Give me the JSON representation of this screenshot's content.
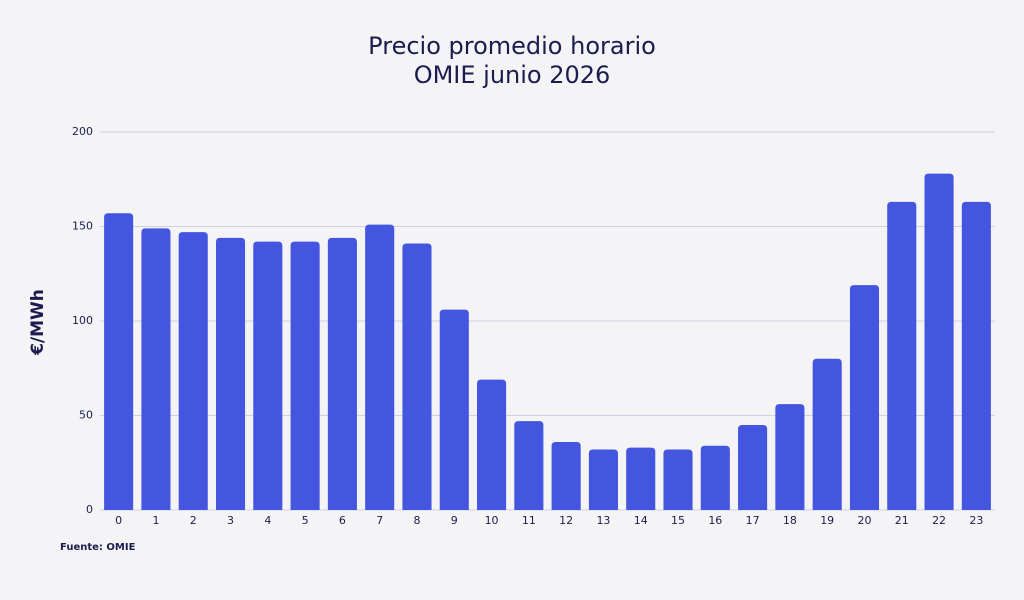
{
  "chart_data": {
    "type": "bar",
    "title": [
      "Precio promedio horario",
      "OMIE junio 2026"
    ],
    "ylabel": "€/MWh",
    "source": "Fuente: OMIE",
    "categories": [
      "0",
      "1",
      "2",
      "3",
      "4",
      "5",
      "6",
      "7",
      "8",
      "9",
      "10",
      "11",
      "12",
      "13",
      "14",
      "15",
      "16",
      "17",
      "18",
      "19",
      "20",
      "21",
      "22",
      "23"
    ],
    "values": [
      157,
      149,
      147,
      144,
      142,
      142,
      144,
      151,
      141,
      106,
      69,
      47,
      36,
      32,
      33,
      32,
      34,
      45,
      56,
      80,
      119,
      163,
      178,
      163
    ],
    "color": "#4455e0",
    "ylim": [
      0,
      200
    ],
    "yticks": [
      0,
      50,
      100,
      150,
      200
    ],
    "grid": true
  }
}
